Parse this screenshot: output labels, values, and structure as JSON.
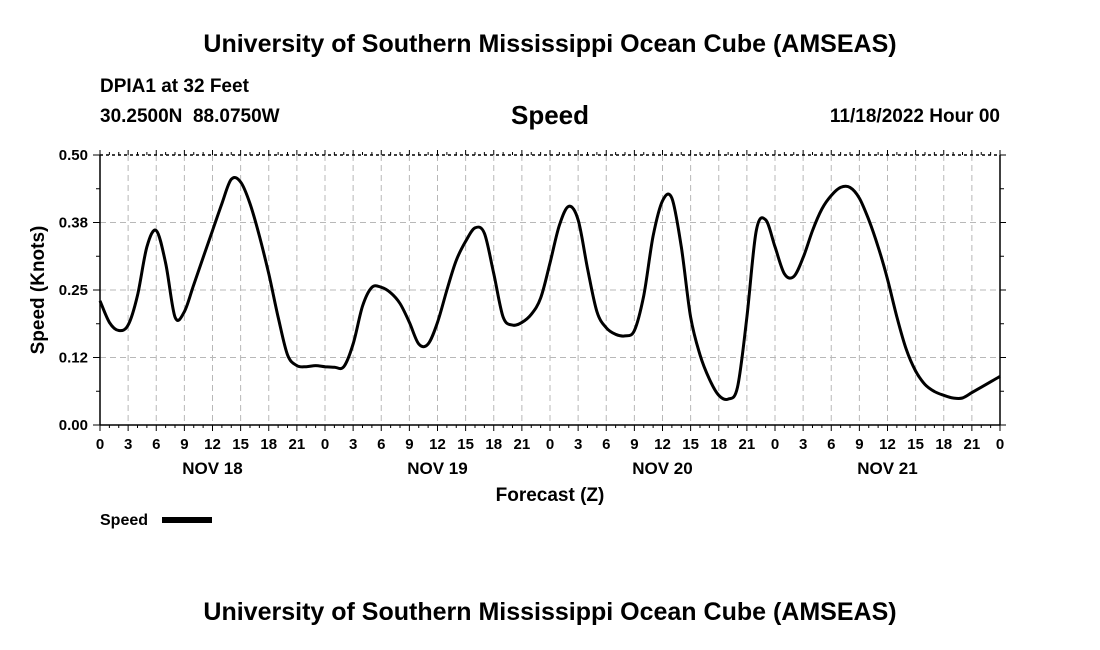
{
  "header": {
    "title": "University of Southern Mississippi Ocean Cube (AMSEAS)",
    "station": "DPIA1 at 32 Feet",
    "lat": "30.2500N",
    "lon": "88.0750W",
    "date": "11/18/2022 Hour 00"
  },
  "footer": {
    "title": "University of Southern Mississippi Ocean Cube (AMSEAS)"
  },
  "chart_data": {
    "type": "line",
    "title": "Speed",
    "xlabel": "Forecast (Z)",
    "ylabel": "Speed (Knots)",
    "xlim": [
      0,
      96
    ],
    "ylim": [
      0,
      0.5
    ],
    "yticks": [
      0.0,
      0.125,
      0.25,
      0.375,
      0.5
    ],
    "ytick_labels": [
      "0.00",
      "0.12",
      "0.25",
      "0.38",
      "0.50"
    ],
    "xtick_labels": [
      "0",
      "3",
      "6",
      "9",
      "12",
      "15",
      "18",
      "21",
      "0",
      "3",
      "6",
      "9",
      "12",
      "15",
      "18",
      "21",
      "0",
      "3",
      "6",
      "9",
      "12",
      "15",
      "18",
      "21",
      "0",
      "3",
      "6",
      "9",
      "12",
      "15",
      "18",
      "21",
      "0"
    ],
    "day_labels": [
      {
        "label": "NOV 18",
        "hour": 12
      },
      {
        "label": "NOV 19",
        "hour": 36
      },
      {
        "label": "NOV 20",
        "hour": 60
      },
      {
        "label": "NOV 21",
        "hour": 84
      }
    ],
    "legend": {
      "label": "Speed",
      "position": "bottom-left"
    },
    "grid": true,
    "series": [
      {
        "name": "Speed",
        "color": "#000000",
        "x": [
          0,
          1,
          2,
          3,
          4,
          5,
          6,
          7,
          8,
          9,
          10,
          11,
          12,
          13,
          14,
          15,
          16,
          17,
          18,
          19,
          20,
          21,
          22,
          23,
          24,
          25,
          26,
          27,
          28,
          29,
          30,
          31,
          32,
          33,
          34,
          35,
          36,
          37,
          38,
          39,
          40,
          41,
          42,
          43,
          44,
          45,
          46,
          47,
          48,
          49,
          50,
          51,
          52,
          53,
          54,
          55,
          56,
          57,
          58,
          59,
          60,
          61,
          62,
          63,
          64,
          65,
          66,
          67,
          68,
          69,
          70,
          71,
          72,
          73,
          74,
          75,
          76,
          77,
          78,
          79,
          80,
          81,
          82,
          83,
          84,
          85,
          86,
          87,
          88,
          89,
          90,
          91,
          92,
          93,
          94,
          95,
          96
        ],
        "values": [
          0.23,
          0.19,
          0.175,
          0.185,
          0.24,
          0.33,
          0.36,
          0.3,
          0.2,
          0.21,
          0.26,
          0.31,
          0.36,
          0.41,
          0.455,
          0.45,
          0.41,
          0.35,
          0.28,
          0.2,
          0.13,
          0.11,
          0.108,
          0.11,
          0.108,
          0.107,
          0.108,
          0.15,
          0.22,
          0.255,
          0.255,
          0.245,
          0.225,
          0.19,
          0.15,
          0.15,
          0.19,
          0.25,
          0.305,
          0.34,
          0.365,
          0.355,
          0.28,
          0.2,
          0.185,
          0.19,
          0.205,
          0.235,
          0.3,
          0.37,
          0.405,
          0.38,
          0.29,
          0.21,
          0.18,
          0.168,
          0.165,
          0.175,
          0.24,
          0.35,
          0.415,
          0.42,
          0.33,
          0.2,
          0.13,
          0.085,
          0.055,
          0.048,
          0.07,
          0.2,
          0.36,
          0.38,
          0.33,
          0.28,
          0.275,
          0.31,
          0.36,
          0.4,
          0.425,
          0.44,
          0.44,
          0.42,
          0.38,
          0.33,
          0.27,
          0.2,
          0.14,
          0.1,
          0.075,
          0.062,
          0.055,
          0.05,
          0.05,
          0.06,
          0.07,
          0.08,
          0.09
        ]
      }
    ]
  }
}
